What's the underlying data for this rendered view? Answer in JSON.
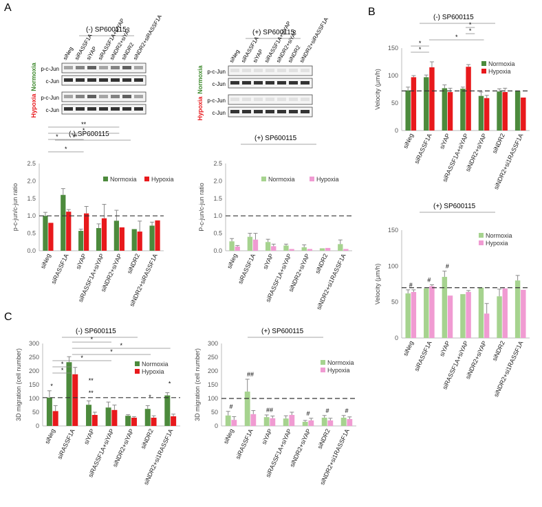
{
  "panel_labels": [
    "A",
    "B",
    "C"
  ],
  "colors": {
    "normoxia": "#4c8a3c",
    "hypoxia": "#e8191c",
    "normoxia_light": "#a6d38f",
    "hypoxia_light": "#f09bd2",
    "normoxia_text": "#3f8a2e",
    "hypoxia_text": "#e8191c"
  },
  "blots": [
    {
      "title": "(-) SP600115",
      "lanes": [
        "siNeg",
        "siRASSF1A",
        "siYAP",
        "siRASSF1A+siYAP",
        "siNDR2+siYAP",
        "siNDR2",
        "siNDR2+siRASSF1A"
      ],
      "groups": [
        {
          "condition": "Normoxia",
          "rows": [
            "p-c-Jun",
            "c-Jun"
          ]
        },
        {
          "condition": "Hypoxia",
          "rows": [
            "p-c-Jun",
            "c-Jun"
          ]
        }
      ]
    },
    {
      "title": "(+) SP600115",
      "lanes": [
        "siNeg",
        "siRASSF1A",
        "siYAP",
        "siRASSF1A+siYAP",
        "siNDR2+siYAP",
        "siNDR2",
        "siNDR2+siRASSF1A"
      ],
      "groups": [
        {
          "condition": "Normoxia",
          "rows": [
            "p-c-Jun",
            "c-Jun"
          ]
        },
        {
          "condition": "Hypoxia",
          "rows": [
            "p-c-Jun",
            "c-Jun"
          ]
        }
      ]
    }
  ],
  "chart_data": [
    {
      "id": "A-minus",
      "type": "bar",
      "title": "(-) SP600115",
      "ylabel": "p-c-jun/c-jun ratio",
      "ylim": [
        0,
        2.5
      ],
      "yticks": [
        "0.0",
        "0.5",
        "1.0",
        "1.5",
        "2.0",
        "2.5"
      ],
      "reference_line": 1.0,
      "categories": [
        "siNeg",
        "siRASSF1A",
        "siYAP",
        "siRASSF1A+siYAP",
        "siNDR2+siYAP",
        "siNDR2",
        "siNDR2+siRASSF1A"
      ],
      "series": [
        {
          "name": "Normoxia",
          "values": [
            1.0,
            1.6,
            0.57,
            0.65,
            0.86,
            0.62,
            0.72
          ],
          "errors": [
            0.1,
            0.18,
            0.05,
            0.12,
            0.3,
            0.0,
            0.1
          ]
        },
        {
          "name": "Hypoxia",
          "values": [
            0.8,
            1.12,
            1.07,
            0.93,
            0.67,
            0.55,
            0.87
          ],
          "errors": [
            0.0,
            0.06,
            0.2,
            0.4,
            0.0,
            0.3,
            0.0
          ]
        }
      ],
      "legend": "top-right",
      "significance": [
        "*",
        "*",
        "**",
        "*",
        "**"
      ]
    },
    {
      "id": "A-plus",
      "type": "bar",
      "title": "(+) SP600115",
      "ylabel": "P-c-jun/c-jun ratio",
      "ylim": [
        0,
        2.5
      ],
      "yticks": [
        "0.0",
        "0.5",
        "1.0",
        "1.5",
        "2.0",
        "2.5"
      ],
      "reference_line": 1.0,
      "categories": [
        "siNeg",
        "siRASSF1A",
        "siYAP",
        "siRASSF1A+siYAP",
        "siNDR2+siYAP",
        "siNDR2",
        "siNDR2+si1RASSF1A"
      ],
      "series": [
        {
          "name": "Normoxia",
          "values": [
            0.27,
            0.4,
            0.25,
            0.15,
            0.1,
            0.07,
            0.19
          ],
          "errors": [
            0.08,
            0.1,
            0.08,
            0.04,
            0.07,
            0.0,
            0.12
          ]
        },
        {
          "name": "Hypoxia",
          "values": [
            0.12,
            0.32,
            0.13,
            0.05,
            0.05,
            0.08,
            0.05
          ],
          "errors": [
            0.03,
            0.18,
            0.06,
            0.0,
            0.0,
            0.0,
            0.0
          ]
        }
      ],
      "legend": "top-right"
    },
    {
      "id": "B-minus",
      "type": "bar",
      "title": "(-) SP600115",
      "ylabel": "Velocity (μm/h)",
      "ylim": [
        0,
        150
      ],
      "yticks": [
        "0",
        "50",
        "100",
        "150"
      ],
      "reference_line": 72,
      "categories": [
        "siNeg",
        "siRASSF1A",
        "siYAP",
        "siRASSF1A+siYAP",
        "siNDR2+siYAP",
        "siNDR2",
        "siNDR2+si1RASSF1A"
      ],
      "series": [
        {
          "name": "Normoxia",
          "values": [
            73,
            97,
            77,
            76,
            63,
            71,
            72
          ],
          "errors": [
            6,
            4,
            6,
            3,
            7,
            5,
            0
          ]
        },
        {
          "name": "Hypoxia",
          "values": [
            97,
            115,
            70,
            116,
            59,
            70,
            60
          ],
          "errors": [
            3,
            10,
            7,
            4,
            5,
            7,
            0
          ]
        }
      ],
      "legend": "top-right",
      "significance": [
        "*",
        "*",
        "*",
        "*",
        "*",
        "**",
        "*",
        "*"
      ]
    },
    {
      "id": "B-plus",
      "type": "bar",
      "title": "(+) SP600115",
      "ylabel": "Velocity (μm/h)",
      "ylim": [
        0,
        150
      ],
      "yticks": [
        "0",
        "50",
        "100",
        "150"
      ],
      "reference_line": 70,
      "categories": [
        "siNeg",
        "siRASSF1A",
        "siYAP",
        "siRASSF1A+siYAP",
        "siNDR2+siYAP",
        "siNDR2",
        "siNDR2+si1RASSF1A"
      ],
      "series": [
        {
          "name": "Normoxia",
          "values": [
            62,
            69,
            85,
            61,
            70,
            58,
            80
          ],
          "errors": [
            5,
            0,
            8,
            0,
            0,
            10,
            7
          ]
        },
        {
          "name": "Hypoxia",
          "values": [
            64,
            72,
            59,
            64,
            34,
            69,
            67
          ],
          "errors": [
            3,
            2,
            0,
            2,
            14,
            0,
            0
          ]
        }
      ],
      "legend": "top-right",
      "annotations": [
        "#",
        "#",
        "#"
      ]
    },
    {
      "id": "C-minus",
      "type": "bar",
      "title": "(-) SP600115",
      "ylabel": "3D migration (cell number)",
      "ylim": [
        0,
        300
      ],
      "yticks": [
        "0",
        "50",
        "100",
        "150",
        "200",
        "250",
        "300"
      ],
      "reference_line": 103,
      "categories": [
        "siNeg",
        "siRASSF1A",
        "siYAP",
        "siRASSF1A+siYAP",
        "siNDR2+siYAP",
        "siNDR2",
        "siNDR2+si1RASSF1A"
      ],
      "series": [
        {
          "name": "Normoxia",
          "values": [
            103,
            232,
            77,
            67,
            37,
            62,
            111
          ],
          "errors": [
            25,
            20,
            14,
            20,
            4,
            12,
            10
          ]
        },
        {
          "name": "Hypoxia",
          "values": [
            54,
            188,
            40,
            58,
            30,
            30,
            35
          ],
          "errors": [
            20,
            25,
            10,
            18,
            4,
            7,
            8
          ]
        }
      ],
      "legend": "top-right",
      "significance": [
        "*",
        "*",
        "*",
        "*",
        "*",
        "*",
        "*",
        "**",
        "**",
        "*",
        "*"
      ]
    },
    {
      "id": "C-plus",
      "type": "bar",
      "title": "(+) SP600115",
      "ylabel": "3D migration (cell number)",
      "ylim": [
        0,
        300
      ],
      "yticks": [
        "0",
        "50",
        "100",
        "150",
        "200",
        "250",
        "300"
      ],
      "reference_line": 100,
      "categories": [
        "siNeg",
        "siRASSF1A",
        "siYAP",
        "siRASSF1A+siYAP",
        "siNDR2+siYAP",
        "siNDR2",
        "siNDR2+si1RASSF1A"
      ],
      "series": [
        {
          "name": "Normoxia",
          "values": [
            38,
            125,
            32,
            27,
            15,
            30,
            30
          ],
          "errors": [
            15,
            45,
            8,
            10,
            5,
            8,
            8
          ]
        },
        {
          "name": "Hypoxia",
          "values": [
            22,
            43,
            28,
            40,
            20,
            20,
            25
          ],
          "errors": [
            12,
            13,
            8,
            10,
            8,
            8,
            8
          ]
        }
      ],
      "legend": "top-right",
      "annotations": [
        "#",
        "##",
        "##",
        "#",
        "#",
        "#"
      ]
    }
  ]
}
